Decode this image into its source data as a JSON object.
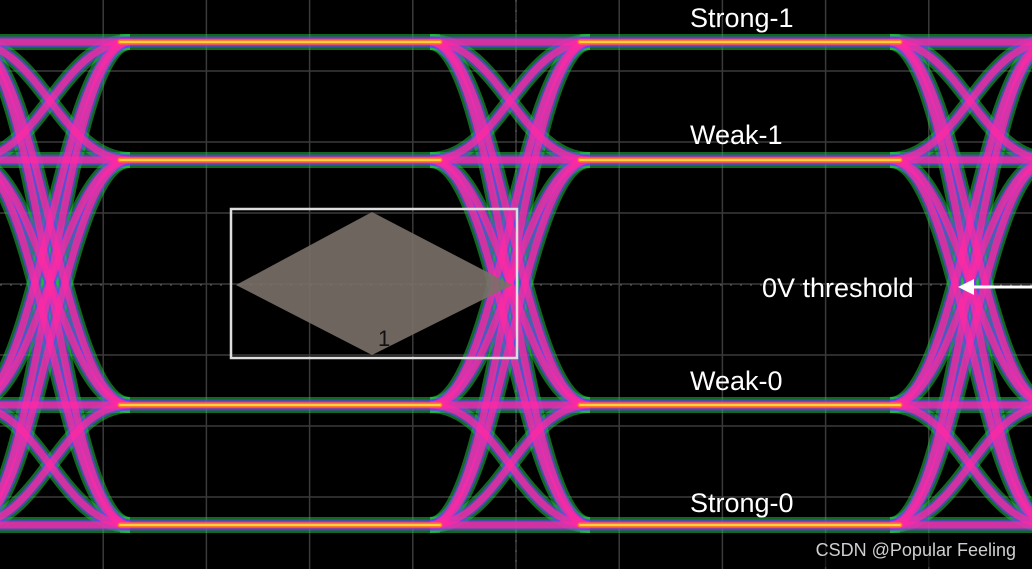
{
  "labels": {
    "strong_1": "Strong-1",
    "weak_1": "Weak-1",
    "threshold": "0V threshold",
    "weak_0": "Weak-0",
    "strong_0": "Strong-0"
  },
  "mask": {
    "label": "1"
  },
  "watermark": "CSDN @Popular Feeling"
}
